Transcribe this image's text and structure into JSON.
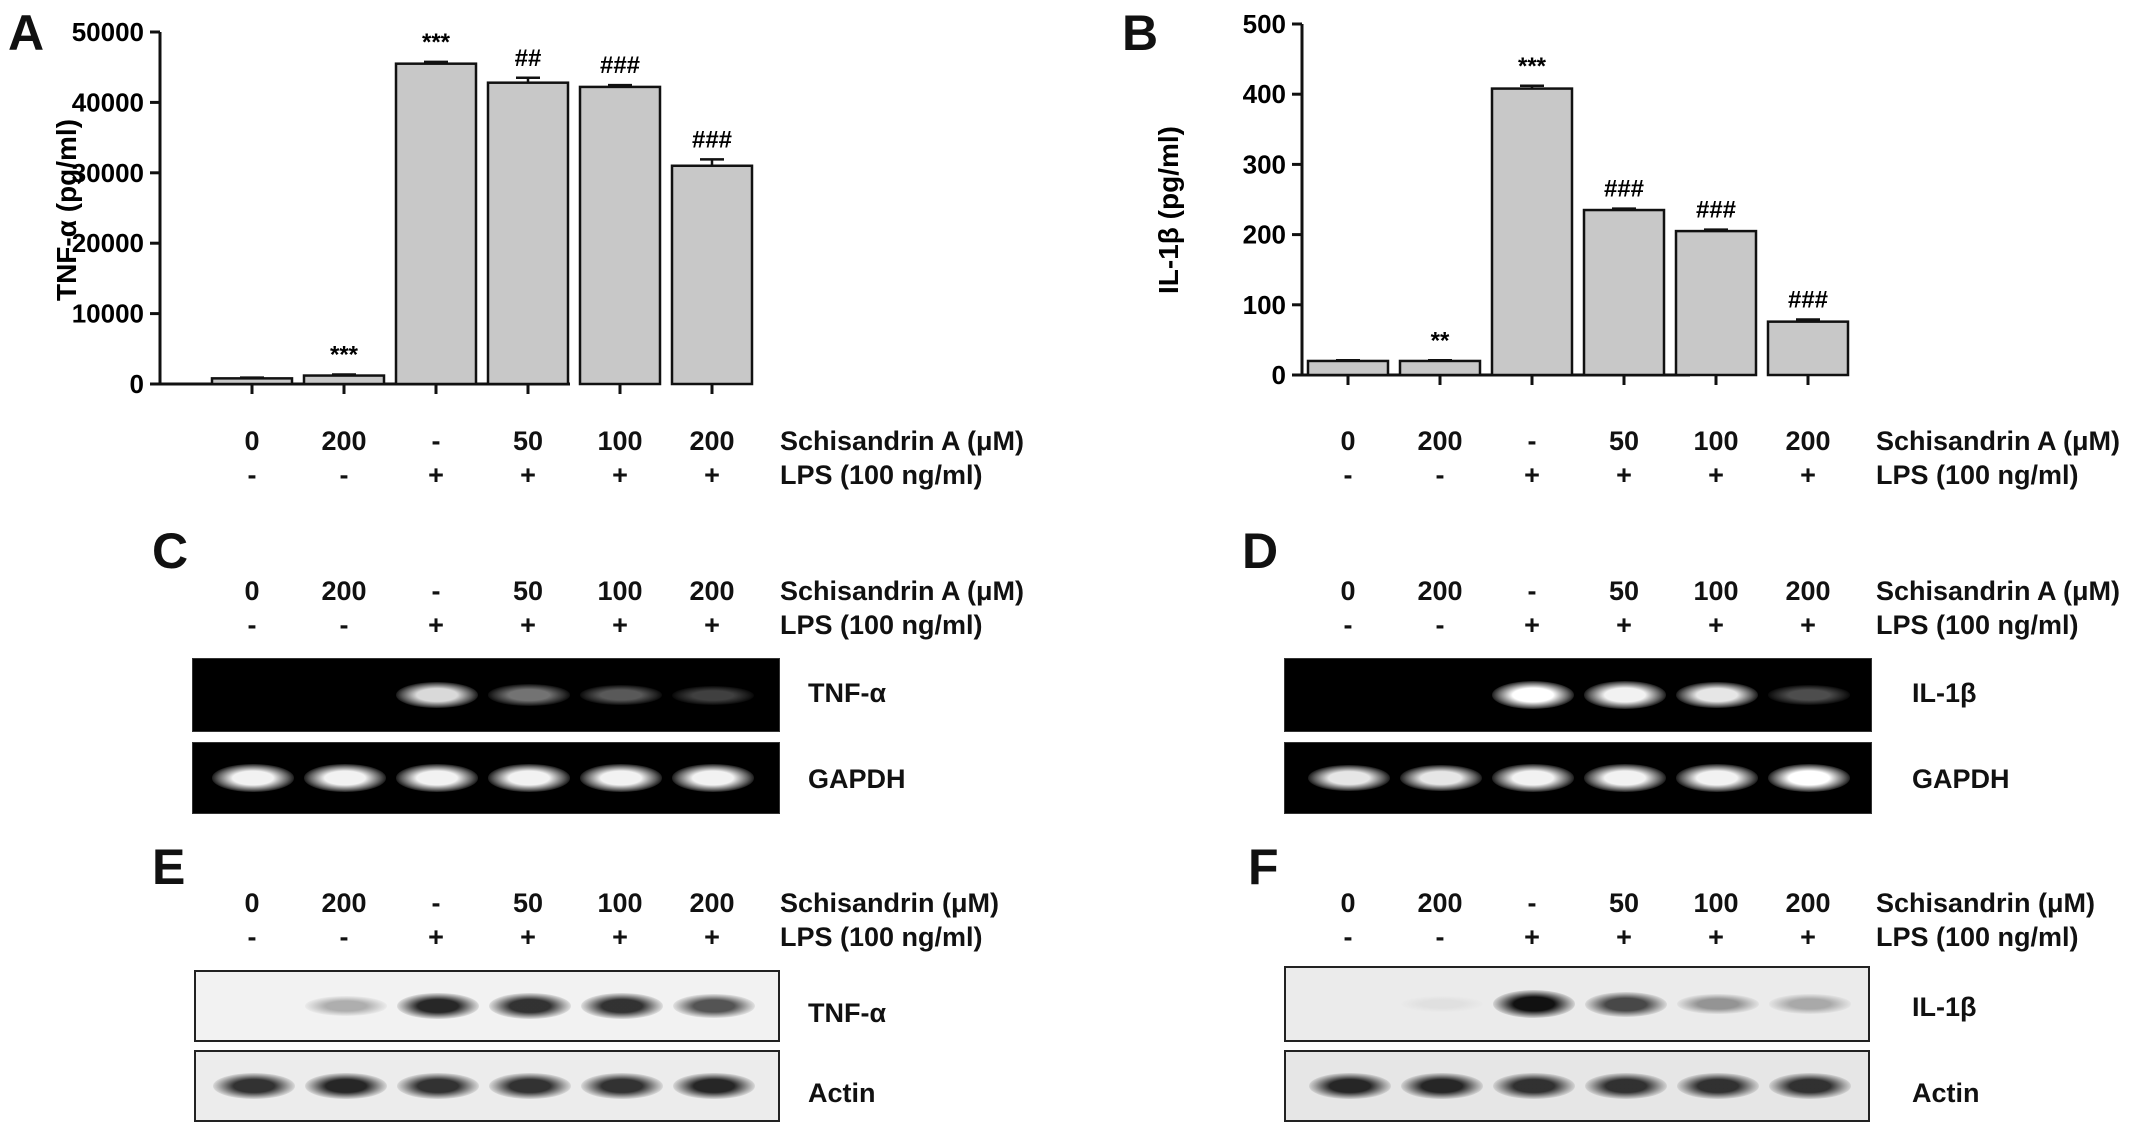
{
  "panels": {
    "A": "A",
    "B": "B",
    "C": "C",
    "D": "D",
    "E": "E",
    "F": "F"
  },
  "treatment": {
    "schisandrin_a_label": "Schisandrin A (μM)",
    "schisandrin_label": "Schisandrin (μM)",
    "lps_label": "LPS (100 ng/ml)",
    "doses": [
      "0",
      "200",
      "-",
      "50",
      "100",
      "200"
    ],
    "lps": [
      "-",
      "-",
      "+",
      "+",
      "+",
      "+"
    ]
  },
  "chart_data": [
    {
      "type": "bar",
      "panel": "A",
      "ylabel": "TNF-α (pg/ml)",
      "ylim": [
        0,
        50000
      ],
      "yticks": [
        "0",
        "10000",
        "20000",
        "30000",
        "40000",
        "50000"
      ],
      "values": [
        800,
        1200,
        45500,
        42800,
        42200,
        31000
      ],
      "errors": [
        100,
        150,
        250,
        700,
        250,
        900
      ],
      "annotations": [
        "",
        "***",
        "***",
        "##",
        "###",
        "###"
      ]
    },
    {
      "type": "bar",
      "panel": "B",
      "ylabel": "IL-1β (pg/ml)",
      "ylim": [
        0,
        500
      ],
      "yticks": [
        "0",
        "100",
        "200",
        "300",
        "400",
        "500"
      ],
      "values": [
        20,
        20,
        408,
        235,
        205,
        76
      ],
      "errors": [
        1,
        1,
        4,
        2,
        2,
        3
      ],
      "annotations": [
        "",
        "**",
        "***",
        "###",
        "###",
        "###"
      ]
    }
  ],
  "gels": {
    "C": {
      "target": "TNF-α",
      "control": "GAPDH",
      "target_intensity": [
        0.0,
        0.0,
        0.85,
        0.45,
        0.35,
        0.25
      ],
      "control_intensity": [
        0.95,
        0.95,
        0.95,
        0.95,
        0.95,
        0.95
      ]
    },
    "D": {
      "target": "IL-1β",
      "control": "GAPDH",
      "target_intensity": [
        0.0,
        0.0,
        1.0,
        0.95,
        0.9,
        0.3
      ],
      "control_intensity": [
        0.9,
        0.9,
        0.95,
        0.95,
        0.95,
        1.0
      ]
    },
    "E": {
      "target": "TNF-α",
      "control": "Actin",
      "target_intensity": [
        0.0,
        0.3,
        0.9,
        0.85,
        0.85,
        0.7
      ],
      "control_intensity": [
        0.85,
        0.9,
        0.85,
        0.85,
        0.85,
        0.9
      ]
    },
    "F": {
      "target": "IL-1β",
      "control": "Actin",
      "target_intensity": [
        0.0,
        0.05,
        1.0,
        0.75,
        0.4,
        0.3
      ],
      "control_intensity": [
        0.9,
        0.9,
        0.85,
        0.85,
        0.85,
        0.85
      ]
    }
  },
  "colors": {
    "bar": "#c8c8c8",
    "gel_bg": "#000000",
    "gel_band": "#ffffff",
    "blot_band": "#111111"
  }
}
